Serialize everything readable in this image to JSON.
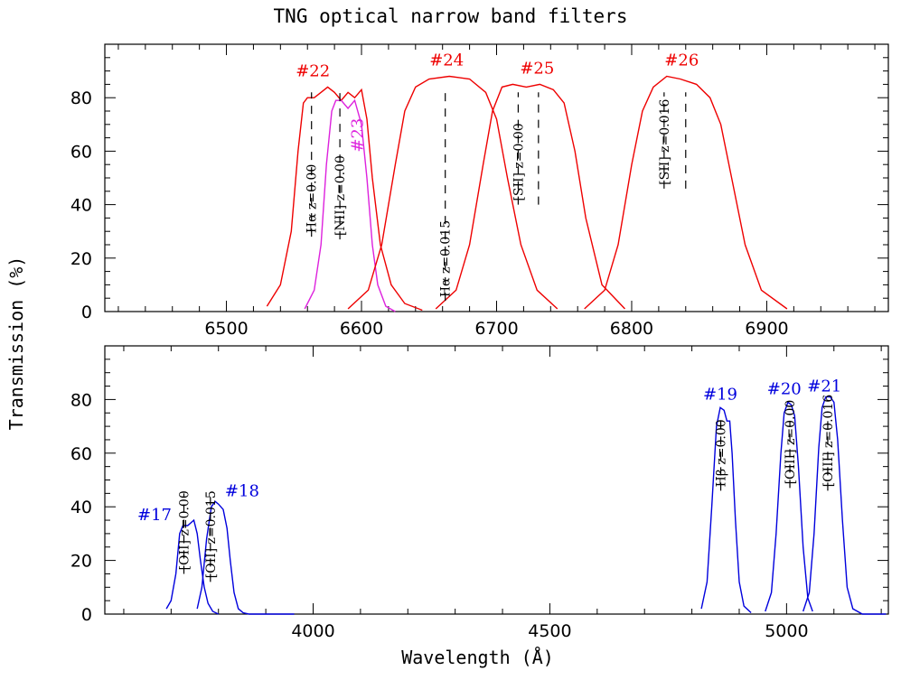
{
  "title": "TNG optical narrow band filters",
  "ylabel": "Transmission (%)",
  "xlabel": "Wavelength (Å)",
  "colors": {
    "red": "#ee0000",
    "magenta": "#dd22dd",
    "blue": "#0000dd"
  },
  "chart_data": [
    {
      "type": "line",
      "xlim": [
        6410,
        6990
      ],
      "ylim": [
        0,
        100
      ],
      "xticks": [
        6500,
        6600,
        6700,
        6800,
        6900
      ],
      "yticks": [
        0,
        20,
        40,
        60,
        80
      ],
      "series": [
        {
          "name": "#22",
          "color": "red",
          "x": [
            6530,
            6540,
            6548,
            6553,
            6557,
            6560,
            6565,
            6570,
            6575,
            6580,
            6585,
            6590,
            6595,
            6600,
            6604,
            6608,
            6614,
            6622,
            6632,
            6645
          ],
          "y": [
            2,
            10,
            30,
            60,
            78,
            80,
            80,
            82,
            84,
            82,
            79,
            82,
            80,
            83,
            72,
            50,
            25,
            10,
            3,
            0.5
          ]
        },
        {
          "name": "#23",
          "color": "magenta",
          "x": [
            6558,
            6565,
            6570,
            6574,
            6578,
            6581,
            6585,
            6590,
            6595,
            6600,
            6604,
            6608,
            6612,
            6618,
            6625
          ],
          "y": [
            1,
            8,
            25,
            55,
            75,
            79,
            79,
            76,
            79,
            70,
            50,
            25,
            10,
            2,
            0
          ]
        },
        {
          "name": "#24",
          "color": "red",
          "x": [
            6590,
            6605,
            6615,
            6625,
            6632,
            6640,
            6650,
            6665,
            6680,
            6692,
            6700,
            6708,
            6718,
            6730,
            6745
          ],
          "y": [
            1,
            8,
            25,
            55,
            75,
            84,
            87,
            88,
            87,
            82,
            72,
            50,
            25,
            8,
            1
          ]
        },
        {
          "name": "#25",
          "color": "red",
          "x": [
            6655,
            6670,
            6680,
            6690,
            6697,
            6704,
            6712,
            6722,
            6732,
            6742,
            6750,
            6758,
            6766,
            6778,
            6795
          ],
          "y": [
            1,
            8,
            25,
            55,
            75,
            84,
            85,
            84,
            85,
            83,
            78,
            60,
            35,
            10,
            1
          ]
        },
        {
          "name": "#26",
          "color": "red",
          "x": [
            6765,
            6780,
            6790,
            6800,
            6808,
            6816,
            6826,
            6836,
            6848,
            6858,
            6866,
            6874,
            6884,
            6896,
            6915
          ],
          "y": [
            1,
            8,
            25,
            55,
            75,
            84,
            88,
            87,
            85,
            80,
            70,
            50,
            25,
            8,
            1
          ]
        }
      ],
      "vlines": [
        {
          "x": 6563,
          "y0": 28,
          "y1": 82,
          "label": "Hα z=0.00"
        },
        {
          "x": 6584,
          "y0": 27,
          "y1": 82,
          "label": "[NII] z=0.00"
        },
        {
          "x": 6662,
          "y0": 4,
          "y1": 82,
          "label": "Hα z=0.015"
        },
        {
          "x": 6716,
          "y0": 40,
          "y1": 82,
          "label": "[SII] z=0.00"
        },
        {
          "x": 6731,
          "y0": 40,
          "y1": 82
        },
        {
          "x": 6824,
          "y0": 46,
          "y1": 82,
          "label": "[SII] z=0.016"
        },
        {
          "x": 6840,
          "y0": 46,
          "y1": 82
        }
      ],
      "annotations": [
        {
          "text": "#22",
          "x": 6564,
          "y": 88,
          "color": "red"
        },
        {
          "text": "#23",
          "x": 6601,
          "y": 66,
          "color": "magenta",
          "rotate": -90
        },
        {
          "text": "#24",
          "x": 6663,
          "y": 92,
          "color": "red"
        },
        {
          "text": "#25",
          "x": 6730,
          "y": 89,
          "color": "red"
        },
        {
          "text": "#26",
          "x": 6837,
          "y": 92,
          "color": "red"
        }
      ]
    },
    {
      "type": "line",
      "xlim": [
        3560,
        5215
      ],
      "ylim": [
        0,
        100
      ],
      "xticks": [
        4000,
        4500,
        5000
      ],
      "yticks": [
        0,
        20,
        40,
        60,
        80
      ],
      "series": [
        {
          "name": "#17",
          "color": "blue",
          "x": [
            3690,
            3700,
            3710,
            3718,
            3725,
            3735,
            3748,
            3755,
            3762,
            3770,
            3778,
            3788,
            3800
          ],
          "y": [
            2,
            5,
            15,
            30,
            33,
            33,
            35,
            30,
            20,
            10,
            4,
            1,
            0
          ]
        },
        {
          "name": "#18",
          "color": "blue",
          "x": [
            3755,
            3765,
            3775,
            3785,
            3793,
            3800,
            3810,
            3818,
            3825,
            3833,
            3842,
            3852,
            3865,
            3960
          ],
          "y": [
            2,
            10,
            28,
            40,
            42,
            41,
            39,
            32,
            20,
            8,
            2,
            0.5,
            0,
            0
          ]
        },
        {
          "name": "#19",
          "color": "blue",
          "x": [
            4820,
            4832,
            4842,
            4852,
            4860,
            4868,
            4874,
            4880,
            4885,
            4892,
            4900,
            4910,
            4925
          ],
          "y": [
            2,
            12,
            40,
            70,
            77,
            76,
            72,
            72,
            60,
            35,
            12,
            3,
            0.5
          ]
        },
        {
          "name": "#20",
          "color": "blue",
          "x": [
            4955,
            4968,
            4978,
            4988,
            4995,
            5003,
            5010,
            5017,
            5025,
            5035,
            5045,
            5055
          ],
          "y": [
            1,
            8,
            30,
            60,
            75,
            79,
            78,
            74,
            55,
            25,
            6,
            1
          ]
        },
        {
          "name": "#21",
          "color": "blue",
          "x": [
            5035,
            5048,
            5058,
            5068,
            5075,
            5083,
            5092,
            5100,
            5108,
            5118,
            5128,
            5140,
            5160,
            5210
          ],
          "y": [
            1,
            8,
            30,
            62,
            77,
            81,
            81,
            79,
            65,
            35,
            10,
            2,
            0,
            0
          ]
        }
      ],
      "vlines": [
        {
          "x": 3727,
          "y0": 15,
          "y1": 45,
          "label": "[OII] z=0.00"
        },
        {
          "x": 3783,
          "y0": 12,
          "y1": 45,
          "label": "[OII] z=0.015"
        },
        {
          "x": 4861,
          "y0": 46,
          "y1": 72,
          "label": "Hβ z=0.00"
        },
        {
          "x": 5007,
          "y0": 47,
          "y1": 72,
          "label": "[OIII] z=0.00"
        },
        {
          "x": 5087,
          "y0": 46,
          "y1": 72,
          "label": "[OIII] z=0.016"
        }
      ],
      "annotations": [
        {
          "text": "#17",
          "x": 3665,
          "y": 35,
          "color": "blue"
        },
        {
          "text": "#18",
          "x": 3850,
          "y": 44,
          "color": "blue"
        },
        {
          "text": "#19",
          "x": 4860,
          "y": 80,
          "color": "blue"
        },
        {
          "text": "#20",
          "x": 4995,
          "y": 82,
          "color": "blue"
        },
        {
          "text": "#21",
          "x": 5080,
          "y": 83,
          "color": "blue"
        }
      ]
    }
  ]
}
